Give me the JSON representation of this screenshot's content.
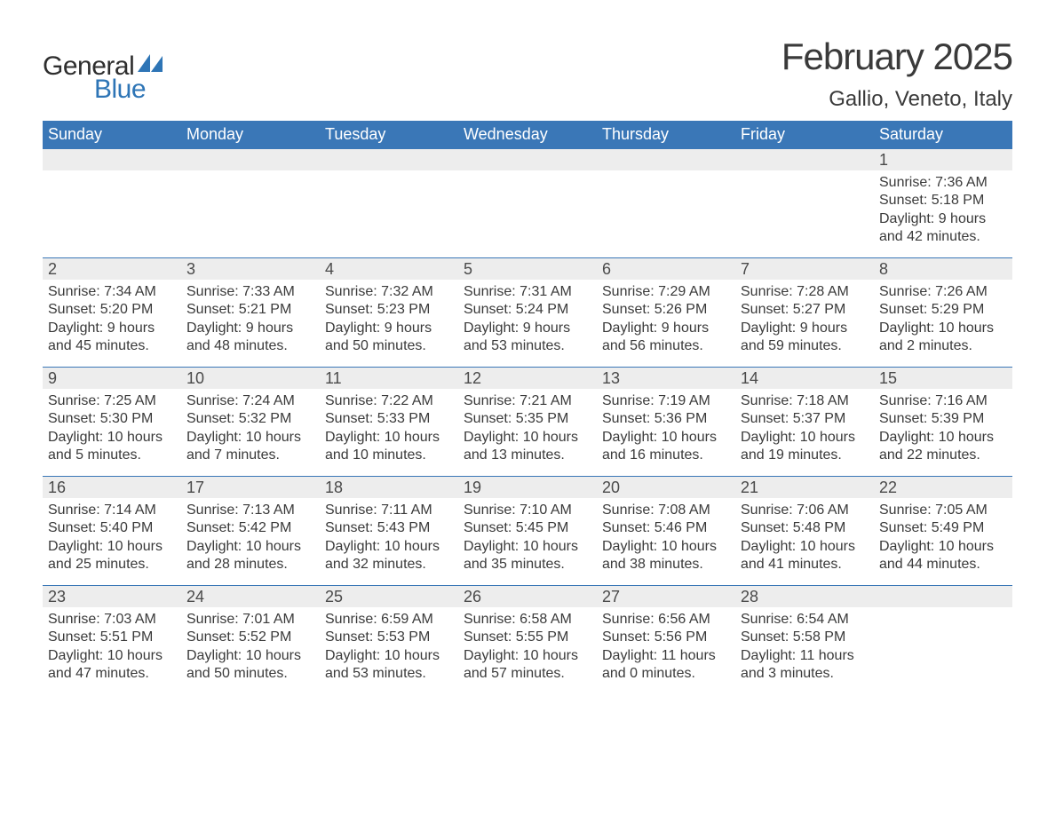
{
  "logo": {
    "text1": "General",
    "text2": "Blue",
    "color_general": "#2e2e2e",
    "color_blue": "#2e75b6",
    "flag_color": "#2e75b6"
  },
  "title": "February 2025",
  "location": "Gallio, Veneto, Italy",
  "colors": {
    "header_bg": "#3a77b7",
    "header_text": "#ffffff",
    "daybar_bg": "#ededed",
    "week_divider": "#3a77b7",
    "body_text": "#3a3a3a",
    "page_bg": "#ffffff"
  },
  "typography": {
    "title_fontsize": 42,
    "location_fontsize": 24,
    "dayheader_fontsize": 18,
    "daynum_fontsize": 18,
    "info_fontsize": 16,
    "font_family": "Arial"
  },
  "layout": {
    "columns": 7,
    "rows": 5,
    "cell_min_height": 122
  },
  "day_headers": [
    "Sunday",
    "Monday",
    "Tuesday",
    "Wednesday",
    "Thursday",
    "Friday",
    "Saturday"
  ],
  "weeks": [
    [
      {
        "empty": true
      },
      {
        "empty": true
      },
      {
        "empty": true
      },
      {
        "empty": true
      },
      {
        "empty": true
      },
      {
        "empty": true
      },
      {
        "day": "1",
        "sunrise": "Sunrise: 7:36 AM",
        "sunset": "Sunset: 5:18 PM",
        "daylight1": "Daylight: 9 hours",
        "daylight2": "and 42 minutes."
      }
    ],
    [
      {
        "day": "2",
        "sunrise": "Sunrise: 7:34 AM",
        "sunset": "Sunset: 5:20 PM",
        "daylight1": "Daylight: 9 hours",
        "daylight2": "and 45 minutes."
      },
      {
        "day": "3",
        "sunrise": "Sunrise: 7:33 AM",
        "sunset": "Sunset: 5:21 PM",
        "daylight1": "Daylight: 9 hours",
        "daylight2": "and 48 minutes."
      },
      {
        "day": "4",
        "sunrise": "Sunrise: 7:32 AM",
        "sunset": "Sunset: 5:23 PM",
        "daylight1": "Daylight: 9 hours",
        "daylight2": "and 50 minutes."
      },
      {
        "day": "5",
        "sunrise": "Sunrise: 7:31 AM",
        "sunset": "Sunset: 5:24 PM",
        "daylight1": "Daylight: 9 hours",
        "daylight2": "and 53 minutes."
      },
      {
        "day": "6",
        "sunrise": "Sunrise: 7:29 AM",
        "sunset": "Sunset: 5:26 PM",
        "daylight1": "Daylight: 9 hours",
        "daylight2": "and 56 minutes."
      },
      {
        "day": "7",
        "sunrise": "Sunrise: 7:28 AM",
        "sunset": "Sunset: 5:27 PM",
        "daylight1": "Daylight: 9 hours",
        "daylight2": "and 59 minutes."
      },
      {
        "day": "8",
        "sunrise": "Sunrise: 7:26 AM",
        "sunset": "Sunset: 5:29 PM",
        "daylight1": "Daylight: 10 hours",
        "daylight2": "and 2 minutes."
      }
    ],
    [
      {
        "day": "9",
        "sunrise": "Sunrise: 7:25 AM",
        "sunset": "Sunset: 5:30 PM",
        "daylight1": "Daylight: 10 hours",
        "daylight2": "and 5 minutes."
      },
      {
        "day": "10",
        "sunrise": "Sunrise: 7:24 AM",
        "sunset": "Sunset: 5:32 PM",
        "daylight1": "Daylight: 10 hours",
        "daylight2": "and 7 minutes."
      },
      {
        "day": "11",
        "sunrise": "Sunrise: 7:22 AM",
        "sunset": "Sunset: 5:33 PM",
        "daylight1": "Daylight: 10 hours",
        "daylight2": "and 10 minutes."
      },
      {
        "day": "12",
        "sunrise": "Sunrise: 7:21 AM",
        "sunset": "Sunset: 5:35 PM",
        "daylight1": "Daylight: 10 hours",
        "daylight2": "and 13 minutes."
      },
      {
        "day": "13",
        "sunrise": "Sunrise: 7:19 AM",
        "sunset": "Sunset: 5:36 PM",
        "daylight1": "Daylight: 10 hours",
        "daylight2": "and 16 minutes."
      },
      {
        "day": "14",
        "sunrise": "Sunrise: 7:18 AM",
        "sunset": "Sunset: 5:37 PM",
        "daylight1": "Daylight: 10 hours",
        "daylight2": "and 19 minutes."
      },
      {
        "day": "15",
        "sunrise": "Sunrise: 7:16 AM",
        "sunset": "Sunset: 5:39 PM",
        "daylight1": "Daylight: 10 hours",
        "daylight2": "and 22 minutes."
      }
    ],
    [
      {
        "day": "16",
        "sunrise": "Sunrise: 7:14 AM",
        "sunset": "Sunset: 5:40 PM",
        "daylight1": "Daylight: 10 hours",
        "daylight2": "and 25 minutes."
      },
      {
        "day": "17",
        "sunrise": "Sunrise: 7:13 AM",
        "sunset": "Sunset: 5:42 PM",
        "daylight1": "Daylight: 10 hours",
        "daylight2": "and 28 minutes."
      },
      {
        "day": "18",
        "sunrise": "Sunrise: 7:11 AM",
        "sunset": "Sunset: 5:43 PM",
        "daylight1": "Daylight: 10 hours",
        "daylight2": "and 32 minutes."
      },
      {
        "day": "19",
        "sunrise": "Sunrise: 7:10 AM",
        "sunset": "Sunset: 5:45 PM",
        "daylight1": "Daylight: 10 hours",
        "daylight2": "and 35 minutes."
      },
      {
        "day": "20",
        "sunrise": "Sunrise: 7:08 AM",
        "sunset": "Sunset: 5:46 PM",
        "daylight1": "Daylight: 10 hours",
        "daylight2": "and 38 minutes."
      },
      {
        "day": "21",
        "sunrise": "Sunrise: 7:06 AM",
        "sunset": "Sunset: 5:48 PM",
        "daylight1": "Daylight: 10 hours",
        "daylight2": "and 41 minutes."
      },
      {
        "day": "22",
        "sunrise": "Sunrise: 7:05 AM",
        "sunset": "Sunset: 5:49 PM",
        "daylight1": "Daylight: 10 hours",
        "daylight2": "and 44 minutes."
      }
    ],
    [
      {
        "day": "23",
        "sunrise": "Sunrise: 7:03 AM",
        "sunset": "Sunset: 5:51 PM",
        "daylight1": "Daylight: 10 hours",
        "daylight2": "and 47 minutes."
      },
      {
        "day": "24",
        "sunrise": "Sunrise: 7:01 AM",
        "sunset": "Sunset: 5:52 PM",
        "daylight1": "Daylight: 10 hours",
        "daylight2": "and 50 minutes."
      },
      {
        "day": "25",
        "sunrise": "Sunrise: 6:59 AM",
        "sunset": "Sunset: 5:53 PM",
        "daylight1": "Daylight: 10 hours",
        "daylight2": "and 53 minutes."
      },
      {
        "day": "26",
        "sunrise": "Sunrise: 6:58 AM",
        "sunset": "Sunset: 5:55 PM",
        "daylight1": "Daylight: 10 hours",
        "daylight2": "and 57 minutes."
      },
      {
        "day": "27",
        "sunrise": "Sunrise: 6:56 AM",
        "sunset": "Sunset: 5:56 PM",
        "daylight1": "Daylight: 11 hours",
        "daylight2": "and 0 minutes."
      },
      {
        "day": "28",
        "sunrise": "Sunrise: 6:54 AM",
        "sunset": "Sunset: 5:58 PM",
        "daylight1": "Daylight: 11 hours",
        "daylight2": "and 3 minutes."
      },
      {
        "empty": true
      }
    ]
  ]
}
